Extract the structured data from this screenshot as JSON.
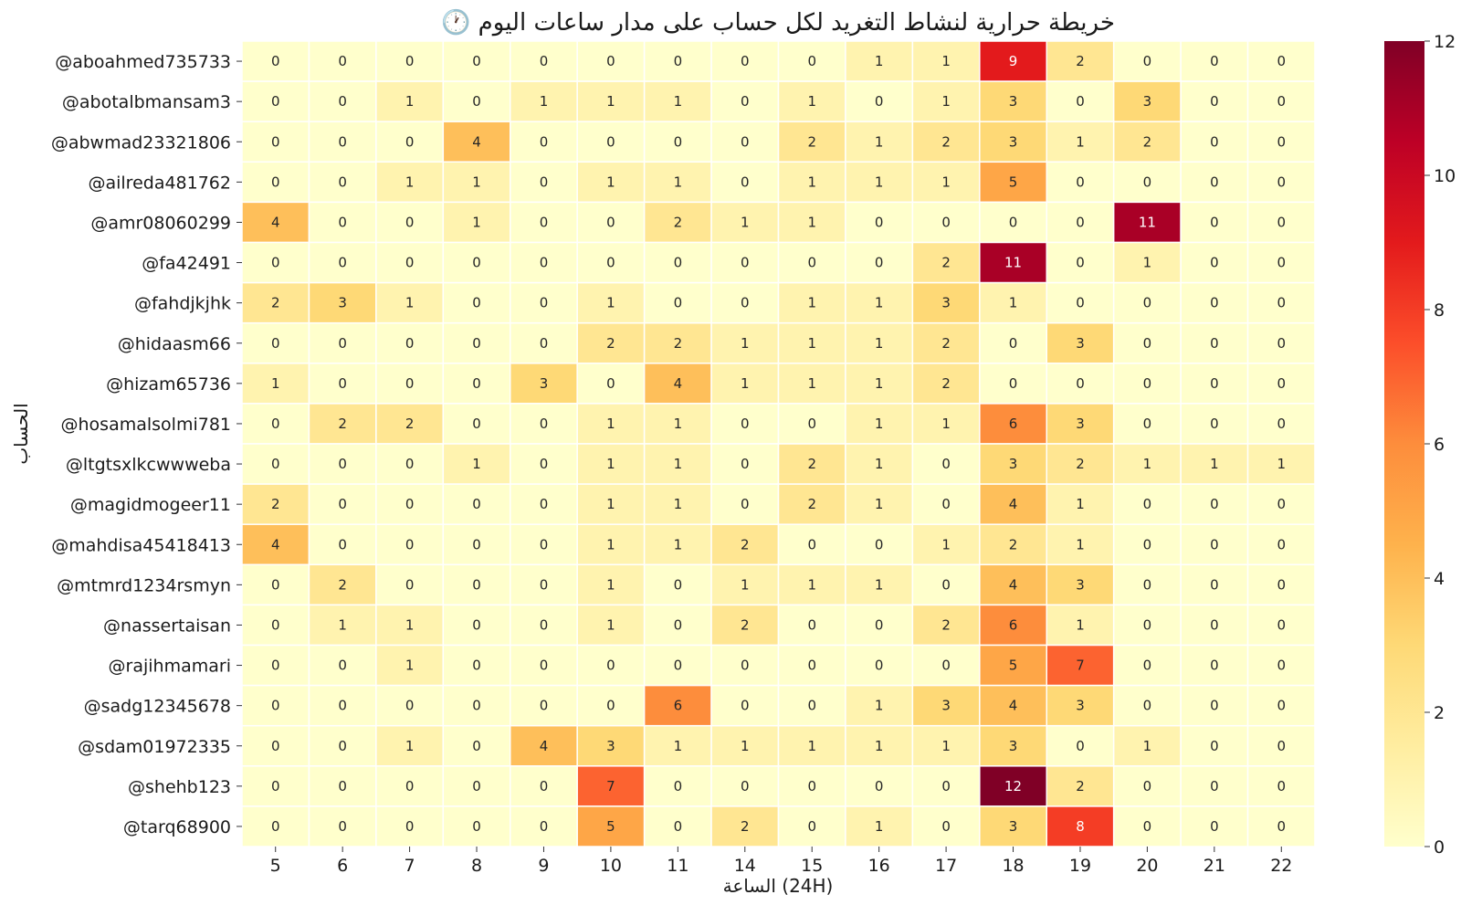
{
  "chart_data": {
    "type": "heatmap",
    "title": "🕐 خريطة حرارية لنشاط التغريد لكل حساب على مدار ساعات اليوم",
    "xlabel": "الساعة (24H)",
    "ylabel": "الحساب",
    "x": [
      "5",
      "6",
      "7",
      "8",
      "9",
      "10",
      "11",
      "14",
      "15",
      "16",
      "17",
      "18",
      "19",
      "20",
      "21",
      "22"
    ],
    "y": [
      "@aboahmed735733",
      "@abotalbmansam3",
      "@abwmad23321806",
      "@ailreda481762",
      "@amr08060299",
      "@fa42491",
      "@fahdjkjhk",
      "@hidaasm66",
      "@hizam65736",
      "@hosamalsolmi781",
      "@ltgtsxlkcwwweba",
      "@magidmogeer11",
      "@mahdisa45418413",
      "@mtmrd1234rsmyn",
      "@nassertaisan",
      "@rajihmamari",
      "@sadg12345678",
      "@sdam01972335",
      "@shehb123",
      "@tarq68900"
    ],
    "values": [
      [
        0,
        0,
        0,
        0,
        0,
        0,
        0,
        0,
        0,
        1,
        1,
        9,
        2,
        0,
        0,
        0
      ],
      [
        0,
        0,
        1,
        0,
        1,
        1,
        1,
        0,
        1,
        0,
        1,
        3,
        0,
        3,
        0,
        0
      ],
      [
        0,
        0,
        0,
        4,
        0,
        0,
        0,
        0,
        2,
        1,
        2,
        3,
        1,
        2,
        0,
        0
      ],
      [
        0,
        0,
        1,
        1,
        0,
        1,
        1,
        0,
        1,
        1,
        1,
        5,
        0,
        0,
        0,
        0
      ],
      [
        4,
        0,
        0,
        1,
        0,
        0,
        2,
        1,
        1,
        0,
        0,
        0,
        0,
        11,
        0,
        0
      ],
      [
        0,
        0,
        0,
        0,
        0,
        0,
        0,
        0,
        0,
        0,
        2,
        11,
        0,
        1,
        0,
        0
      ],
      [
        2,
        3,
        1,
        0,
        0,
        1,
        0,
        0,
        1,
        1,
        3,
        1,
        0,
        0,
        0,
        0
      ],
      [
        0,
        0,
        0,
        0,
        0,
        2,
        2,
        1,
        1,
        1,
        2,
        0,
        3,
        0,
        0,
        0
      ],
      [
        1,
        0,
        0,
        0,
        3,
        0,
        4,
        1,
        1,
        1,
        2,
        0,
        0,
        0,
        0,
        0
      ],
      [
        0,
        2,
        2,
        0,
        0,
        1,
        1,
        0,
        0,
        1,
        1,
        6,
        3,
        0,
        0,
        0
      ],
      [
        0,
        0,
        0,
        1,
        0,
        1,
        1,
        0,
        2,
        1,
        0,
        3,
        2,
        1,
        1,
        1
      ],
      [
        2,
        0,
        0,
        0,
        0,
        1,
        1,
        0,
        2,
        1,
        0,
        4,
        1,
        0,
        0,
        0
      ],
      [
        4,
        0,
        0,
        0,
        0,
        1,
        1,
        2,
        0,
        0,
        1,
        2,
        1,
        0,
        0,
        0
      ],
      [
        0,
        2,
        0,
        0,
        0,
        1,
        0,
        1,
        1,
        1,
        0,
        4,
        3,
        0,
        0,
        0
      ],
      [
        0,
        1,
        1,
        0,
        0,
        1,
        0,
        2,
        0,
        0,
        2,
        6,
        1,
        0,
        0,
        0
      ],
      [
        0,
        0,
        1,
        0,
        0,
        0,
        0,
        0,
        0,
        0,
        0,
        5,
        7,
        0,
        0,
        0
      ],
      [
        0,
        0,
        0,
        0,
        0,
        0,
        6,
        0,
        0,
        1,
        3,
        4,
        3,
        0,
        0,
        0
      ],
      [
        0,
        0,
        1,
        0,
        4,
        3,
        1,
        1,
        1,
        1,
        1,
        3,
        0,
        1,
        0,
        0
      ],
      [
        0,
        0,
        0,
        0,
        0,
        7,
        0,
        0,
        0,
        0,
        0,
        12,
        2,
        0,
        0,
        0
      ],
      [
        0,
        0,
        0,
        0,
        0,
        5,
        0,
        2,
        0,
        1,
        0,
        3,
        8,
        0,
        0,
        0
      ]
    ],
    "colormap": "YlOrRd",
    "annotated": true,
    "zlim": [
      0,
      12
    ],
    "colorbar_ticks": [
      "0",
      "2",
      "4",
      "6",
      "8",
      "10",
      "12"
    ]
  }
}
